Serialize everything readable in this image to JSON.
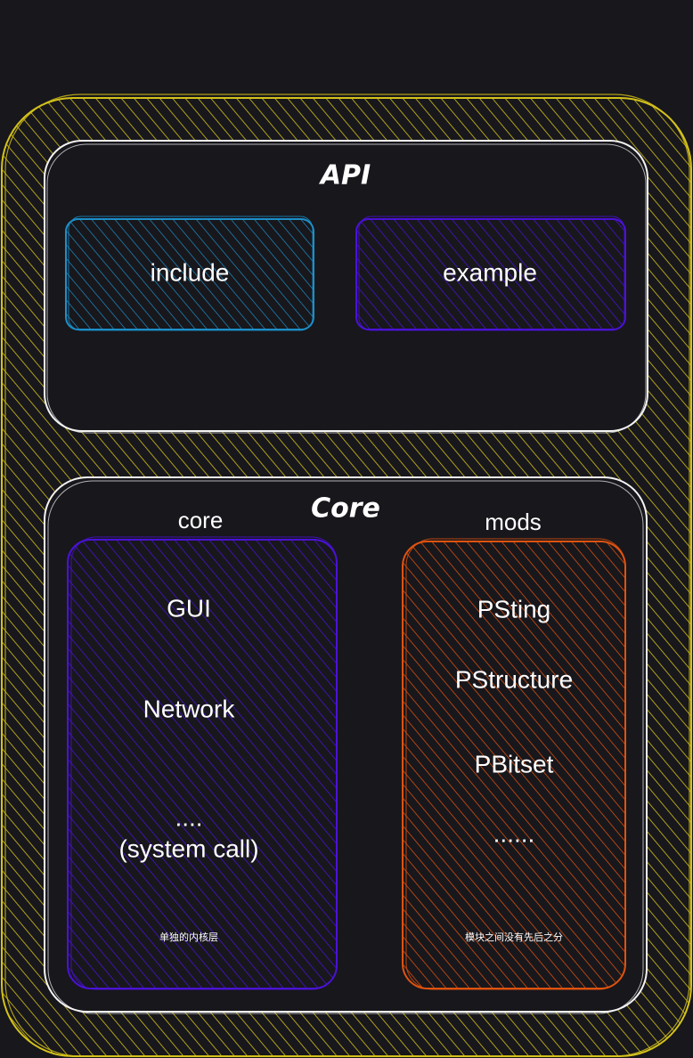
{
  "colors": {
    "background": "#18171c",
    "outer": "#d4c21a",
    "panel": "#f4f4f4",
    "include": "#1c8fc8",
    "example": "#4a12d6",
    "core": "#4a12d6",
    "mods": "#e0530f"
  },
  "api": {
    "title": "API",
    "include_label": "include",
    "example_label": "example"
  },
  "core_section": {
    "title": "Core",
    "core_label": "core",
    "mods_label": "mods",
    "core_items": [
      "GUI",
      "Network",
      "....",
      "(system call)"
    ],
    "core_note": "单独的内核层",
    "mods_items": [
      "PSting",
      "PStructure",
      "PBitset",
      "......"
    ],
    "mods_note": "模块之间没有先后之分"
  }
}
